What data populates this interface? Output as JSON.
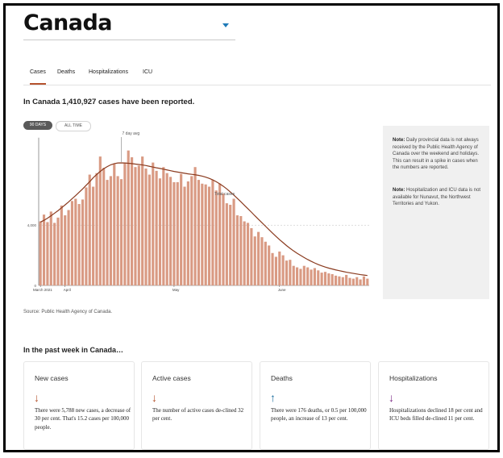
{
  "region": {
    "title": "Canada"
  },
  "tabs": [
    {
      "label": "Cases",
      "active": true
    },
    {
      "label": "Deaths",
      "active": false
    },
    {
      "label": "Hospitalizations",
      "active": false
    },
    {
      "label": "ICU",
      "active": false
    }
  ],
  "headline": "In Canada 1,410,927 cases have been reported.",
  "range_toggle": {
    "selected": "90 DAYS",
    "other": "ALL TIME"
  },
  "chart_data": {
    "type": "bar",
    "x_ticks": [
      "March 2021",
      "April",
      "May",
      "June"
    ],
    "y_ticks": [
      "0",
      "4,000"
    ],
    "annotations": [
      "7 day avg",
      "Total cases"
    ],
    "values": [
      4250,
      4700,
      4200,
      4900,
      4150,
      4500,
      5300,
      4650,
      5000,
      5600,
      5750,
      5400,
      5700,
      6500,
      7350,
      6550,
      7450,
      8550,
      7800,
      7000,
      7250,
      8050,
      7250,
      7050,
      8150,
      8950,
      8500,
      7850,
      7950,
      8550,
      7750,
      7350,
      8150,
      7600,
      7100,
      7850,
      7450,
      7200,
      6850,
      6850,
      7400,
      6550,
      6900,
      7250,
      7850,
      7000,
      6750,
      6700,
      6550,
      7000,
      6300,
      6750,
      6100,
      5450,
      5350,
      5750,
      4650,
      4600,
      4250,
      4150,
      3800,
      3250,
      3550,
      3200,
      2900,
      2650,
      2150,
      1900,
      2250,
      2000,
      1650,
      1700,
      1300,
      1200,
      1100,
      1300,
      1200,
      1050,
      1150,
      1000,
      850,
      900,
      800,
      750,
      650,
      600,
      550,
      700,
      500,
      450,
      550,
      400,
      600,
      450
    ],
    "avg_values": [
      4200,
      4320,
      4460,
      4620,
      4790,
      4960,
      5150,
      5340,
      5540,
      5750,
      5960,
      6180,
      6400,
      6640,
      6880,
      7140,
      7360,
      7560,
      7740,
      7880,
      8000,
      8080,
      8120,
      8130,
      8120,
      8100,
      8080,
      8050,
      8020,
      7990,
      7950,
      7900,
      7850,
      7800,
      7760,
      7710,
      7660,
      7610,
      7560,
      7520,
      7480,
      7440,
      7400,
      7370,
      7340,
      7300,
      7250,
      7180,
      7100,
      7000,
      6880,
      6740,
      6580,
      6400,
      6200,
      5990,
      5770,
      5550,
      5320,
      5090,
      4860,
      4620,
      4390,
      4160,
      3930,
      3700,
      3470,
      3250,
      3040,
      2840,
      2640,
      2460,
      2290,
      2130,
      1990,
      1850,
      1720,
      1600,
      1490,
      1390,
      1300,
      1220,
      1150,
      1090,
      1030,
      980,
      930,
      880,
      840,
      800,
      760,
      720,
      690,
      660
    ],
    "ylim": [
      0,
      10000
    ],
    "bar_color": "#d99a83",
    "line_color": "#8a3a1e"
  },
  "notes": [
    {
      "label": "Note:",
      "text": "Daily provincial data is not always received by the Public Health Agency of Canada over the weekend and holidays. This can result in a spike in cases when the numbers are reported."
    },
    {
      "label": "Note:",
      "text": "Hospitalization and ICU data is not available for Nunavut, the Northwest Territories and Yukon."
    }
  ],
  "source": "Source: Public Health Agency of Canada.",
  "week_heading": "In the past week in Canada…",
  "cards": [
    {
      "title": "New cases",
      "arrow": "↓",
      "arrow_icon": "down-arrow-icon",
      "arrow_color": "#b5532e",
      "body": "There were 5,788 new cases, a decrease of 30 per cent. That's 15.2 cases per 100,000 people."
    },
    {
      "title": "Active cases",
      "arrow": "↓",
      "arrow_icon": "down-arrow-icon",
      "arrow_color": "#b5532e",
      "body": "The number of active cases de-clined 32 per cent."
    },
    {
      "title": "Deaths",
      "arrow": "↑",
      "arrow_icon": "up-arrow-icon",
      "arrow_color": "#1e6f9f",
      "body": "There were 176 deaths, or 0.5 per 100,000 people, an increase of 13 per cent."
    },
    {
      "title": "Hospitalizations",
      "arrow": "↓",
      "arrow_icon": "down-arrow-icon",
      "arrow_color": "#7b2a85",
      "body": "Hospitalizations declined 18 per cent and ICU beds filled de-clined 11 per cent."
    }
  ]
}
